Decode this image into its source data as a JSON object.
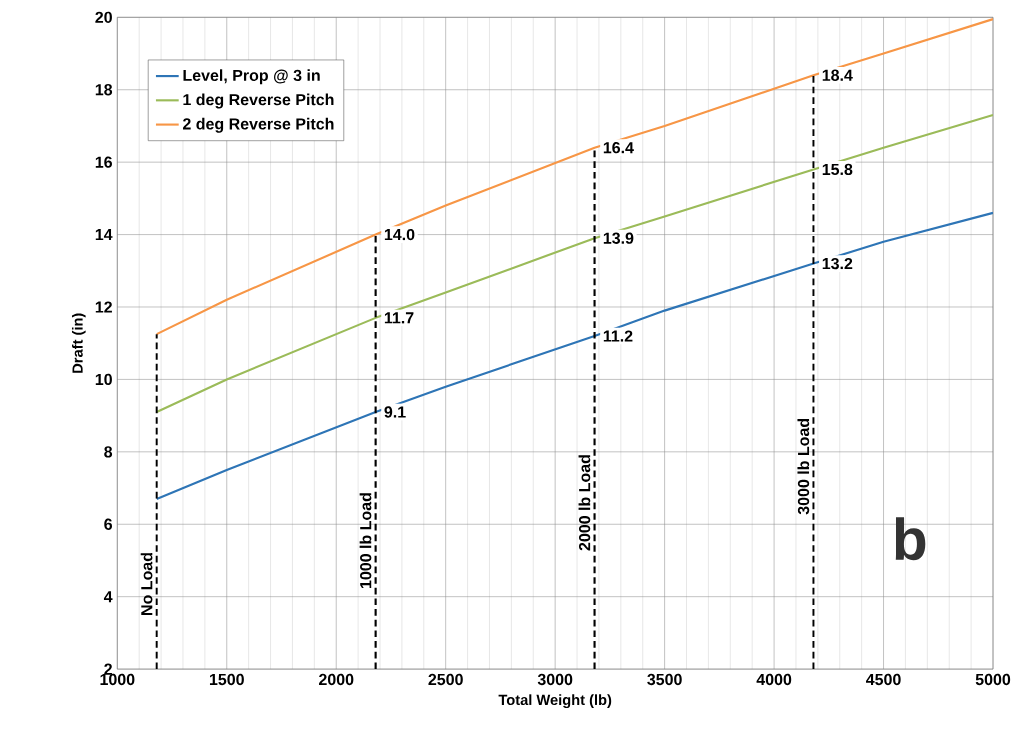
{
  "chart_data": {
    "type": "line",
    "xlabel": "Total Weight (lb)",
    "ylabel": "Draft (in)",
    "x": [
      1180,
      1500,
      2180,
      2500,
      3180,
      3500,
      4180,
      4500,
      5000
    ],
    "series": [
      {
        "name": "Level, Prop @ 3 in",
        "color": "#2e75b6",
        "values": [
          6.7,
          7.5,
          9.1,
          9.8,
          11.2,
          11.9,
          13.2,
          13.8,
          14.6
        ]
      },
      {
        "name": "1 deg Reverse Pitch",
        "color": "#9bbb59",
        "values": [
          9.1,
          10.0,
          11.7,
          12.4,
          13.9,
          14.5,
          15.8,
          16.4,
          17.3
        ]
      },
      {
        "name": "2 deg Reverse Pitch",
        "color": "#f79646",
        "values": [
          11.25,
          12.2,
          14.0,
          14.8,
          16.4,
          17.0,
          18.4,
          19.0,
          19.95
        ]
      }
    ],
    "xlim": [
      1000,
      5000
    ],
    "ylim": [
      2,
      20
    ],
    "xticks": [
      1000,
      1500,
      2000,
      2500,
      3000,
      3500,
      4000,
      4500,
      5000
    ],
    "yticks": [
      2,
      4,
      6,
      8,
      10,
      12,
      14,
      16,
      18,
      20
    ],
    "grid": true,
    "legend": "top left",
    "marker": "none",
    "line_style": "solid",
    "ref_lines": [
      {
        "axis": "x",
        "value": 1180,
        "label": "No Load",
        "line_style": "dashed"
      },
      {
        "axis": "x",
        "value": 2180,
        "label": "1000 lb Load",
        "line_style": "dashed"
      },
      {
        "axis": "x",
        "value": 3180,
        "label": "2000 lb Load",
        "line_style": "dashed"
      },
      {
        "axis": "x",
        "value": 4180,
        "label": "3000 lb Load",
        "line_style": "dashed"
      }
    ],
    "annotations": [
      {
        "text": "9.1",
        "x": 2180,
        "y": 9.1
      },
      {
        "text": "11.7",
        "x": 2180,
        "y": 11.7
      },
      {
        "text": "14.0",
        "x": 2180,
        "y": 14.0
      },
      {
        "text": "11.2",
        "x": 3180,
        "y": 11.2
      },
      {
        "text": "13.9",
        "x": 3180,
        "y": 13.9
      },
      {
        "text": "16.4",
        "x": 3180,
        "y": 16.4
      },
      {
        "text": "13.2",
        "x": 4180,
        "y": 13.2
      },
      {
        "text": "15.8",
        "x": 4180,
        "y": 15.8
      },
      {
        "text": "18.4",
        "x": 4180,
        "y": 18.4
      },
      "b"
    ]
  }
}
